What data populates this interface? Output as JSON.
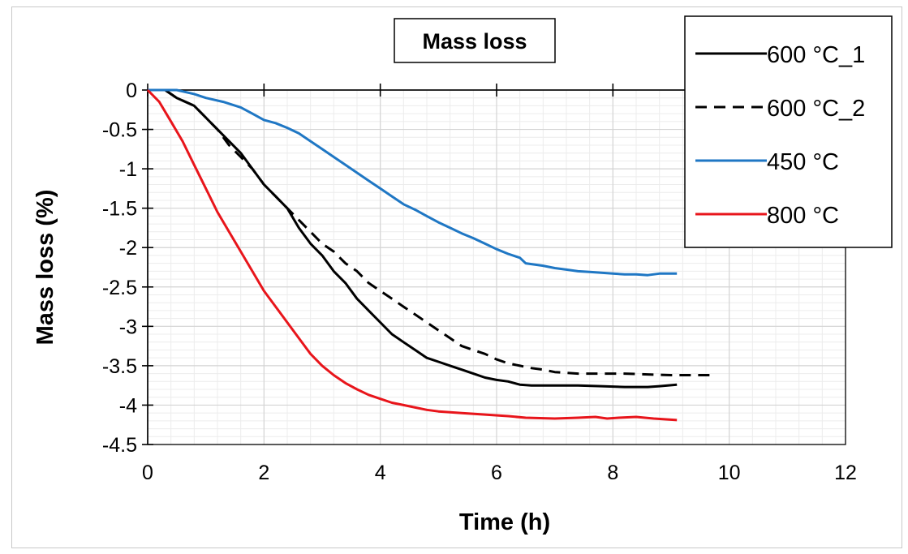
{
  "chart_data": {
    "type": "line",
    "title": "Mass loss",
    "xlabel": "Time (h)",
    "ylabel": "Mass loss (%)",
    "xlim": [
      0,
      12
    ],
    "ylim": [
      -4.5,
      0
    ],
    "x_ticks": [
      "0",
      "2",
      "4",
      "6",
      "8",
      "10",
      "12"
    ],
    "y_ticks": [
      "0",
      "-0.5",
      "-1",
      "-1.5",
      "-2",
      "-2.5",
      "-3",
      "-3.5",
      "-4",
      "-4.5"
    ],
    "grid": true,
    "legend_position": "top-right",
    "series": [
      {
        "name": "600 °C_1",
        "color": "#000000",
        "dash": "solid",
        "points": [
          [
            0,
            0
          ],
          [
            0.3,
            0
          ],
          [
            0.5,
            -0.1
          ],
          [
            0.8,
            -0.2
          ],
          [
            1.0,
            -0.35
          ],
          [
            1.2,
            -0.5
          ],
          [
            1.4,
            -0.65
          ],
          [
            1.6,
            -0.8
          ],
          [
            1.8,
            -1.0
          ],
          [
            2.0,
            -1.2
          ],
          [
            2.2,
            -1.35
          ],
          [
            2.4,
            -1.5
          ],
          [
            2.6,
            -1.75
          ],
          [
            2.8,
            -1.95
          ],
          [
            3.0,
            -2.1
          ],
          [
            3.2,
            -2.3
          ],
          [
            3.4,
            -2.45
          ],
          [
            3.6,
            -2.65
          ],
          [
            3.8,
            -2.8
          ],
          [
            4.0,
            -2.95
          ],
          [
            4.2,
            -3.1
          ],
          [
            4.4,
            -3.2
          ],
          [
            4.6,
            -3.3
          ],
          [
            4.8,
            -3.4
          ],
          [
            5.0,
            -3.45
          ],
          [
            5.2,
            -3.5
          ],
          [
            5.4,
            -3.55
          ],
          [
            5.6,
            -3.6
          ],
          [
            5.8,
            -3.65
          ],
          [
            6.0,
            -3.68
          ],
          [
            6.2,
            -3.7
          ],
          [
            6.4,
            -3.74
          ],
          [
            6.6,
            -3.75
          ],
          [
            7.0,
            -3.75
          ],
          [
            7.4,
            -3.75
          ],
          [
            7.8,
            -3.76
          ],
          [
            8.2,
            -3.77
          ],
          [
            8.6,
            -3.77
          ],
          [
            8.8,
            -3.76
          ],
          [
            9.1,
            -3.74
          ]
        ]
      },
      {
        "name": "600 °C_2",
        "color": "#000000",
        "dash": "dashed",
        "points": [
          [
            0,
            0
          ],
          [
            0.3,
            0
          ],
          [
            0.5,
            -0.1
          ],
          [
            0.8,
            -0.2
          ],
          [
            1.0,
            -0.35
          ],
          [
            1.2,
            -0.5
          ],
          [
            1.4,
            -0.7
          ],
          [
            1.6,
            -0.85
          ],
          [
            1.8,
            -1.0
          ],
          [
            2.0,
            -1.2
          ],
          [
            2.2,
            -1.35
          ],
          [
            2.4,
            -1.5
          ],
          [
            2.6,
            -1.65
          ],
          [
            2.8,
            -1.8
          ],
          [
            3.0,
            -1.95
          ],
          [
            3.2,
            -2.05
          ],
          [
            3.4,
            -2.2
          ],
          [
            3.6,
            -2.3
          ],
          [
            3.8,
            -2.45
          ],
          [
            4.0,
            -2.55
          ],
          [
            4.2,
            -2.65
          ],
          [
            4.4,
            -2.75
          ],
          [
            4.6,
            -2.85
          ],
          [
            4.8,
            -2.95
          ],
          [
            5.0,
            -3.05
          ],
          [
            5.2,
            -3.15
          ],
          [
            5.4,
            -3.25
          ],
          [
            5.6,
            -3.3
          ],
          [
            5.8,
            -3.35
          ],
          [
            6.0,
            -3.42
          ],
          [
            6.2,
            -3.47
          ],
          [
            6.4,
            -3.5
          ],
          [
            6.6,
            -3.53
          ],
          [
            6.8,
            -3.55
          ],
          [
            7.0,
            -3.58
          ],
          [
            7.4,
            -3.6
          ],
          [
            7.8,
            -3.6
          ],
          [
            8.2,
            -3.6
          ],
          [
            8.6,
            -3.61
          ],
          [
            9.0,
            -3.62
          ],
          [
            9.4,
            -3.62
          ],
          [
            9.7,
            -3.62
          ]
        ]
      },
      {
        "name": "450 °C",
        "color": "#1f77c4",
        "dash": "solid",
        "points": [
          [
            0,
            0
          ],
          [
            0.5,
            0
          ],
          [
            0.8,
            -0.05
          ],
          [
            1.0,
            -0.1
          ],
          [
            1.3,
            -0.15
          ],
          [
            1.6,
            -0.22
          ],
          [
            1.8,
            -0.3
          ],
          [
            2.0,
            -0.38
          ],
          [
            2.2,
            -0.42
          ],
          [
            2.4,
            -0.48
          ],
          [
            2.6,
            -0.55
          ],
          [
            2.8,
            -0.65
          ],
          [
            3.0,
            -0.75
          ],
          [
            3.2,
            -0.85
          ],
          [
            3.4,
            -0.95
          ],
          [
            3.6,
            -1.05
          ],
          [
            3.8,
            -1.15
          ],
          [
            4.0,
            -1.25
          ],
          [
            4.2,
            -1.35
          ],
          [
            4.4,
            -1.45
          ],
          [
            4.6,
            -1.52
          ],
          [
            4.8,
            -1.6
          ],
          [
            5.0,
            -1.68
          ],
          [
            5.2,
            -1.75
          ],
          [
            5.4,
            -1.82
          ],
          [
            5.6,
            -1.88
          ],
          [
            5.8,
            -1.95
          ],
          [
            6.0,
            -2.02
          ],
          [
            6.2,
            -2.08
          ],
          [
            6.4,
            -2.13
          ],
          [
            6.5,
            -2.2
          ],
          [
            6.8,
            -2.23
          ],
          [
            7.0,
            -2.26
          ],
          [
            7.2,
            -2.28
          ],
          [
            7.4,
            -2.3
          ],
          [
            7.6,
            -2.31
          ],
          [
            7.8,
            -2.32
          ],
          [
            8.0,
            -2.33
          ],
          [
            8.2,
            -2.34
          ],
          [
            8.4,
            -2.34
          ],
          [
            8.6,
            -2.35
          ],
          [
            8.8,
            -2.33
          ],
          [
            9.0,
            -2.33
          ],
          [
            9.1,
            -2.33
          ]
        ]
      },
      {
        "name": "800 °C",
        "color": "#e8151b",
        "dash": "solid",
        "points": [
          [
            0,
            0
          ],
          [
            0.2,
            -0.15
          ],
          [
            0.4,
            -0.4
          ],
          [
            0.6,
            -0.65
          ],
          [
            0.8,
            -0.95
          ],
          [
            1.0,
            -1.25
          ],
          [
            1.2,
            -1.55
          ],
          [
            1.4,
            -1.8
          ],
          [
            1.6,
            -2.05
          ],
          [
            1.8,
            -2.3
          ],
          [
            2.0,
            -2.55
          ],
          [
            2.2,
            -2.75
          ],
          [
            2.4,
            -2.95
          ],
          [
            2.6,
            -3.15
          ],
          [
            2.8,
            -3.35
          ],
          [
            3.0,
            -3.5
          ],
          [
            3.2,
            -3.62
          ],
          [
            3.4,
            -3.72
          ],
          [
            3.6,
            -3.8
          ],
          [
            3.8,
            -3.87
          ],
          [
            4.0,
            -3.92
          ],
          [
            4.2,
            -3.97
          ],
          [
            4.4,
            -4.0
          ],
          [
            4.6,
            -4.03
          ],
          [
            4.8,
            -4.06
          ],
          [
            5.0,
            -4.08
          ],
          [
            5.4,
            -4.1
          ],
          [
            5.8,
            -4.12
          ],
          [
            6.2,
            -4.14
          ],
          [
            6.5,
            -4.16
          ],
          [
            7.0,
            -4.17
          ],
          [
            7.4,
            -4.16
          ],
          [
            7.7,
            -4.15
          ],
          [
            7.9,
            -4.17
          ],
          [
            8.1,
            -4.16
          ],
          [
            8.4,
            -4.15
          ],
          [
            8.7,
            -4.17
          ],
          [
            9.1,
            -4.19
          ]
        ]
      }
    ]
  }
}
